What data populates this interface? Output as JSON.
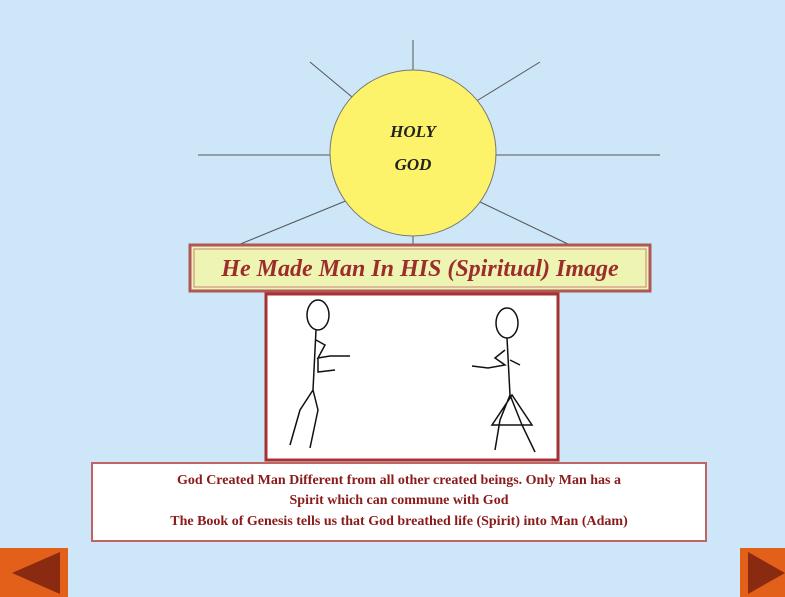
{
  "sun": {
    "lines": [
      "HOLY",
      "GOD"
    ]
  },
  "banner": "He Made Man In HIS (Spiritual) Image",
  "caption": {
    "lines": [
      "God Created Man Different from all other created beings.  Only Man has a",
      "Spirit which can commune with God",
      "The Book of Genesis tells us that God breathed life (Spirit) into Man (Adam)"
    ]
  }
}
